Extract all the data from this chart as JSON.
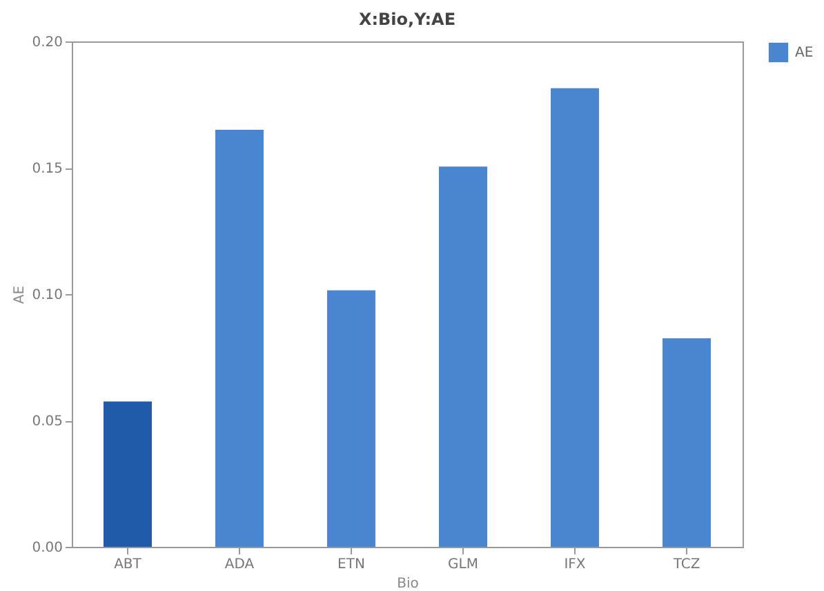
{
  "chart_data": {
    "type": "bar",
    "title": "X:Bio,Y:AE",
    "xlabel": "Bio",
    "ylabel": "AE",
    "categories": [
      "ABT",
      "ADA",
      "ETN",
      "GLM",
      "IFX",
      "TCZ"
    ],
    "series": [
      {
        "name": "AE",
        "color": "#4a86d0",
        "colors": [
          "#1f5ba8",
          "#4a86d0",
          "#4a86d0",
          "#4a86d0",
          "#4a86d0",
          "#4a86d0"
        ],
        "values": [
          0.0575,
          0.165,
          0.1015,
          0.1505,
          0.1815,
          0.0825
        ]
      }
    ],
    "ylim": [
      0,
      0.2
    ],
    "yticks": [
      {
        "value": 0,
        "label": "0.00"
      },
      0.05,
      {
        "value": 0.1,
        "label": "0.10"
      },
      0.15,
      {
        "value": 0.2,
        "label": "0.20"
      }
    ],
    "grid": false,
    "legend": "top right"
  }
}
